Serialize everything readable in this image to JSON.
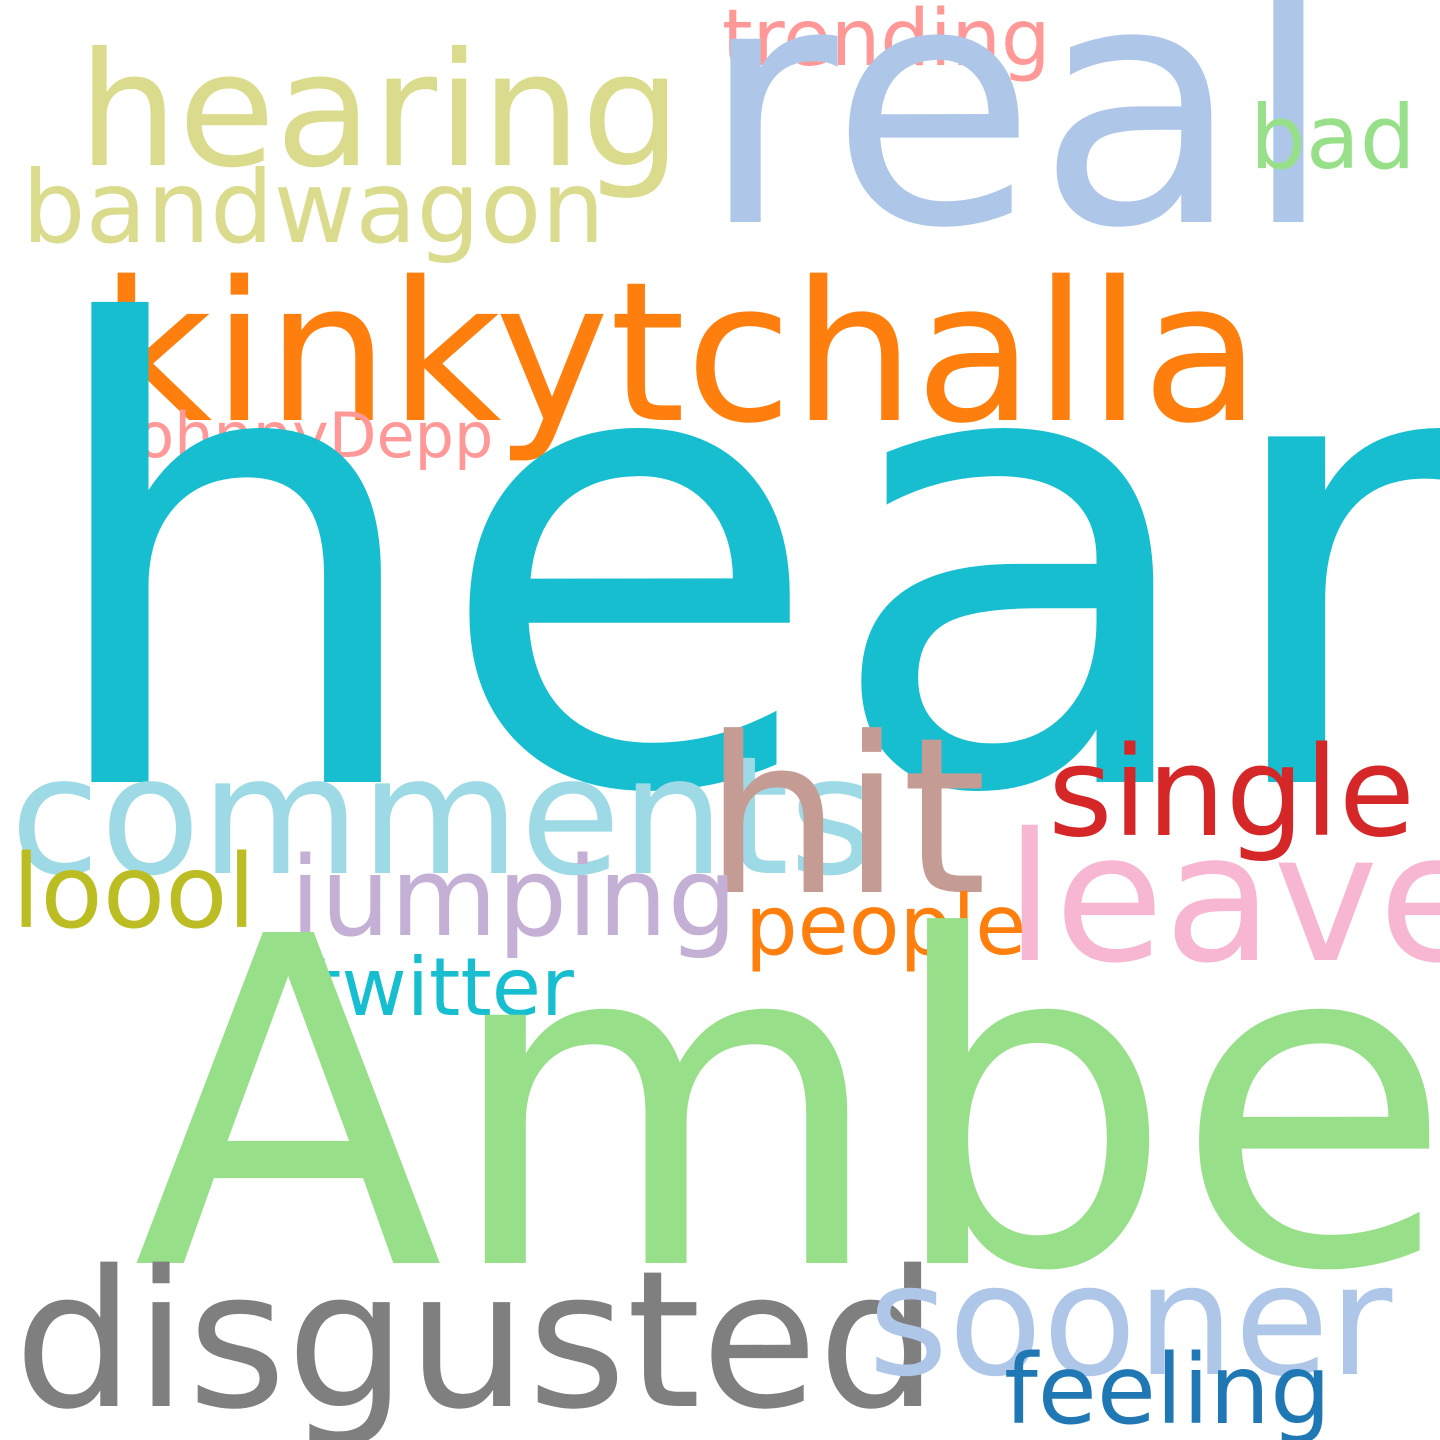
{
  "background": "#ffffff",
  "words": {
    "heard": {
      "text": "heard",
      "color": "#17becf"
    },
    "amber": {
      "text": "Amber",
      "color": "#98df8a"
    },
    "real": {
      "text": "real",
      "color": "#aec7e8"
    },
    "kinkytchalla": {
      "text": "kinkytchalla",
      "color": "#ff7f0e"
    },
    "hit": {
      "text": "hit",
      "color": "#c49c94"
    },
    "disgusted": {
      "text": "disgusted",
      "color": "#7f7f7f"
    },
    "leave": {
      "text": "leave",
      "color": "#f7b6d2"
    },
    "comments": {
      "text": "comments",
      "color": "#9edae5"
    },
    "hearing": {
      "text": "hearing",
      "color": "#dbdb8d"
    },
    "sooner": {
      "text": "sooner",
      "color": "#aec7e8"
    },
    "single": {
      "text": "single",
      "color": "#d62728"
    },
    "jumping": {
      "text": "jumping",
      "color": "#c5b0d5"
    },
    "loool": {
      "text": "loool",
      "color": "#bcbd22"
    },
    "bandwagon": {
      "text": "bandwagon",
      "color": "#dbdb8d"
    },
    "feeling": {
      "text": "feeling",
      "color": "#1f77b4"
    },
    "bad": {
      "text": "bad",
      "color": "#98df8a"
    },
    "people": {
      "text": "people",
      "color": "#ff7f0e"
    },
    "twitter": {
      "text": "twitter",
      "color": "#17becf"
    },
    "trending": {
      "text": "trending",
      "color": "#ff9896"
    },
    "johnnydepp": {
      "text": "JohnnyDepp",
      "color": "#ff9896"
    }
  }
}
